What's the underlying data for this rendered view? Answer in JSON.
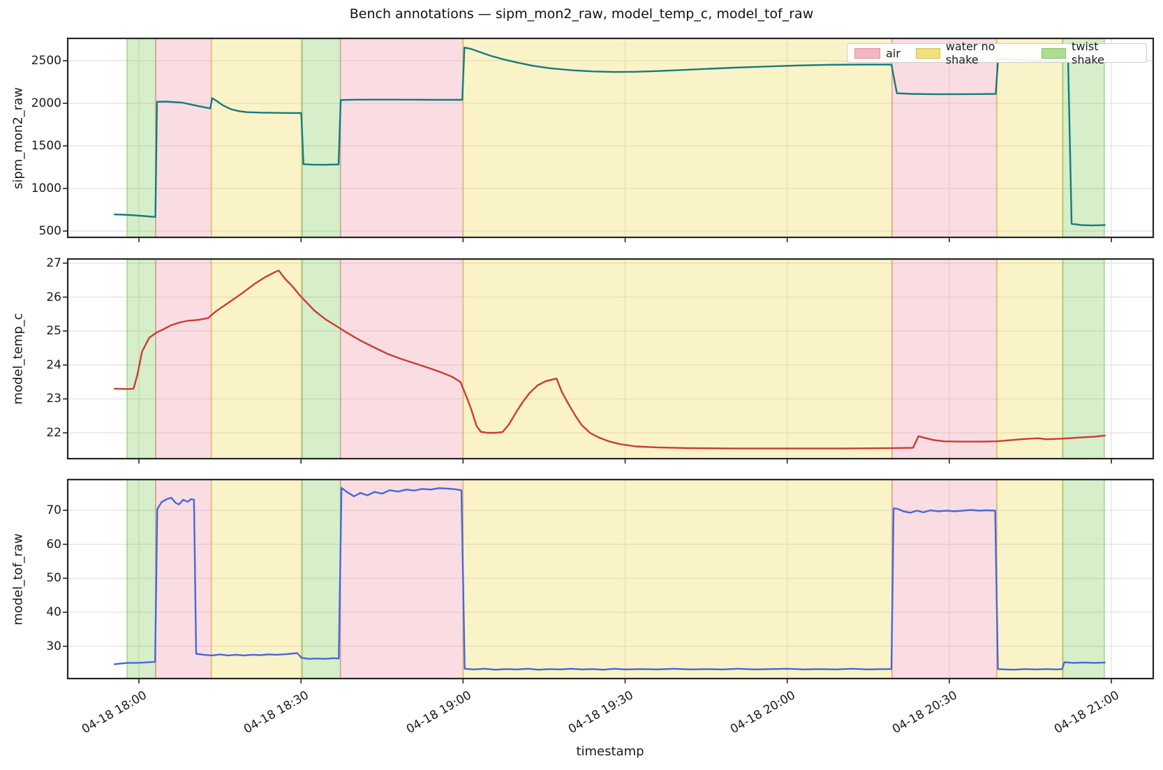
{
  "figure": {
    "title": "Bench annotations — sipm_mon2_raw, model_temp_c, model_tof_raw",
    "xlabel": "timestamp"
  },
  "legend": {
    "items": [
      {
        "label": "air",
        "fill": "#f4b7c1",
        "edge": "#db929e"
      },
      {
        "label": "water no shake",
        "fill": "#f1e07c",
        "edge": "#cfc052"
      },
      {
        "label": "twist shake",
        "fill": "#aedd92",
        "edge": "#84c166"
      }
    ]
  },
  "colors": {
    "spine": "#262626",
    "grid": "#dadada",
    "band_air": "rgba(235,142,158,0.30)",
    "band_air_edge": "rgba(230,120,135,0.55)",
    "band_water": "rgba(238,215,72,0.30)",
    "band_water_edge": "rgba(215,185,60,0.6)",
    "band_twist": "rgba(108,195,62,0.28)",
    "band_twist_edge": "rgba(110,185,70,0.55)",
    "series_sipm": "#137c7e",
    "series_temp": "#cd3a35",
    "series_tof": "#4967d8"
  },
  "chart_data": {
    "type": "line",
    "x_unit": "minutes since 04-18 18:00",
    "xlim": [
      -13.18,
      187.75
    ],
    "xticks": [
      {
        "m": 0,
        "label": "04-18 18:00"
      },
      {
        "m": 30,
        "label": "04-18 18:30"
      },
      {
        "m": 60,
        "label": "04-18 19:00"
      },
      {
        "m": 90,
        "label": "04-18 19:30"
      },
      {
        "m": 120,
        "label": "04-18 20:00"
      },
      {
        "m": 150,
        "label": "04-18 20:30"
      },
      {
        "m": 180,
        "label": "04-18 21:00"
      }
    ],
    "bands": [
      {
        "kind": "twist shake",
        "start": -2.2,
        "end": 3.1
      },
      {
        "kind": "air",
        "start": 3.1,
        "end": 13.4
      },
      {
        "kind": "water no shake",
        "start": 13.4,
        "end": 30.2
      },
      {
        "kind": "twist shake",
        "start": 30.2,
        "end": 37.3
      },
      {
        "kind": "air",
        "start": 37.3,
        "end": 60.0
      },
      {
        "kind": "water no shake",
        "start": 60.0,
        "end": 139.4
      },
      {
        "kind": "air",
        "start": 139.4,
        "end": 158.8
      },
      {
        "kind": "water no shake",
        "start": 158.8,
        "end": 171.0
      },
      {
        "kind": "twist shake",
        "start": 171.0,
        "end": 178.7
      }
    ],
    "subplots": [
      {
        "ylabel": "sipm_mon2_raw",
        "series_name": "sipm_mon2_raw",
        "color_key": "series_sipm",
        "ylim": [
          426,
          2762
        ],
        "yticks": [
          {
            "v": 500,
            "label": "500"
          },
          {
            "v": 1000,
            "label": "1000"
          },
          {
            "v": 1500,
            "label": "1500"
          },
          {
            "v": 2000,
            "label": "2000"
          },
          {
            "v": 2500,
            "label": "2500"
          }
        ],
        "points": [
          [
            -4.5,
            695
          ],
          [
            -3,
            692
          ],
          [
            -1,
            686
          ],
          [
            1,
            676
          ],
          [
            2.5,
            668
          ],
          [
            3.05,
            666
          ],
          [
            3.35,
            2018
          ],
          [
            5,
            2020
          ],
          [
            8,
            2008
          ],
          [
            11,
            1968
          ],
          [
            13.2,
            1940
          ],
          [
            13.55,
            2060
          ],
          [
            14.3,
            2032
          ],
          [
            15.5,
            1978
          ],
          [
            17,
            1932
          ],
          [
            18.5,
            1908
          ],
          [
            20,
            1896
          ],
          [
            23,
            1890
          ],
          [
            27,
            1887
          ],
          [
            30.05,
            1885
          ],
          [
            30.45,
            1285
          ],
          [
            32,
            1280
          ],
          [
            34,
            1278
          ],
          [
            36.95,
            1282
          ],
          [
            37.35,
            2038
          ],
          [
            40,
            2042
          ],
          [
            45,
            2043
          ],
          [
            50,
            2042
          ],
          [
            55,
            2041
          ],
          [
            59.85,
            2041
          ],
          [
            60.25,
            2655
          ],
          [
            61.5,
            2638
          ],
          [
            63,
            2605
          ],
          [
            65,
            2560
          ],
          [
            67.5,
            2515
          ],
          [
            70,
            2478
          ],
          [
            73,
            2440
          ],
          [
            76,
            2412
          ],
          [
            80,
            2388
          ],
          [
            84,
            2374
          ],
          [
            88,
            2368
          ],
          [
            92,
            2370
          ],
          [
            96,
            2378
          ],
          [
            100,
            2390
          ],
          [
            105,
            2404
          ],
          [
            110,
            2418
          ],
          [
            116,
            2432
          ],
          [
            122,
            2444
          ],
          [
            128,
            2452
          ],
          [
            134,
            2455
          ],
          [
            139.3,
            2455
          ],
          [
            140.3,
            2118
          ],
          [
            143,
            2110
          ],
          [
            147,
            2107
          ],
          [
            151,
            2107
          ],
          [
            155,
            2108
          ],
          [
            158.6,
            2110
          ],
          [
            159.05,
            2528
          ],
          [
            161,
            2518
          ],
          [
            164,
            2506
          ],
          [
            167,
            2497
          ],
          [
            170.9,
            2490
          ],
          [
            172.0,
            2489
          ],
          [
            172.65,
            585
          ],
          [
            174.5,
            570
          ],
          [
            176.5,
            566
          ],
          [
            178.8,
            570
          ]
        ]
      },
      {
        "ylabel": "model_temp_c",
        "series_name": "model_temp_c",
        "color_key": "series_temp",
        "ylim": [
          21.239,
          27.123
        ],
        "yticks": [
          {
            "v": 22,
            "label": "22"
          },
          {
            "v": 23,
            "label": "23"
          },
          {
            "v": 24,
            "label": "24"
          },
          {
            "v": 25,
            "label": "25"
          },
          {
            "v": 26,
            "label": "26"
          },
          {
            "v": 27,
            "label": "27"
          }
        ],
        "points": [
          [
            -4.5,
            23.3
          ],
          [
            -2,
            23.29
          ],
          [
            -1.0,
            23.3
          ],
          [
            -0.3,
            23.7
          ],
          [
            0.6,
            24.4
          ],
          [
            1.9,
            24.8
          ],
          [
            3.2,
            24.95
          ],
          [
            4.5,
            25.05
          ],
          [
            5.8,
            25.16
          ],
          [
            7.5,
            25.25
          ],
          [
            9,
            25.3
          ],
          [
            11,
            25.33
          ],
          [
            12.8,
            25.38
          ],
          [
            14,
            25.55
          ],
          [
            15.5,
            25.72
          ],
          [
            17,
            25.88
          ],
          [
            19,
            26.1
          ],
          [
            21.5,
            26.4
          ],
          [
            23.5,
            26.6
          ],
          [
            25.5,
            26.76
          ],
          [
            25.9,
            26.78
          ],
          [
            27,
            26.55
          ],
          [
            28.5,
            26.3
          ],
          [
            29.8,
            26.05
          ],
          [
            31,
            25.85
          ],
          [
            32.5,
            25.6
          ],
          [
            34.5,
            25.35
          ],
          [
            36.5,
            25.15
          ],
          [
            38.5,
            24.95
          ],
          [
            41,
            24.72
          ],
          [
            43.5,
            24.52
          ],
          [
            46,
            24.33
          ],
          [
            48.5,
            24.18
          ],
          [
            51,
            24.05
          ],
          [
            53.5,
            23.92
          ],
          [
            56,
            23.78
          ],
          [
            58,
            23.65
          ],
          [
            59.5,
            23.5
          ],
          [
            60.8,
            23.0
          ],
          [
            61.5,
            22.7
          ],
          [
            62.5,
            22.2
          ],
          [
            63.3,
            22.03
          ],
          [
            64.5,
            22.0
          ],
          [
            66,
            22.0
          ],
          [
            67.3,
            22.02
          ],
          [
            68.5,
            22.25
          ],
          [
            69.8,
            22.6
          ],
          [
            71,
            22.9
          ],
          [
            72.3,
            23.17
          ],
          [
            73.8,
            23.4
          ],
          [
            75.3,
            23.52
          ],
          [
            76.8,
            23.58
          ],
          [
            77.3,
            23.6
          ],
          [
            78.3,
            23.2
          ],
          [
            79.5,
            22.85
          ],
          [
            80.8,
            22.5
          ],
          [
            82,
            22.22
          ],
          [
            83.5,
            22.0
          ],
          [
            85,
            21.87
          ],
          [
            87,
            21.75
          ],
          [
            89,
            21.67
          ],
          [
            92,
            21.6
          ],
          [
            96,
            21.57
          ],
          [
            102,
            21.55
          ],
          [
            110,
            21.54
          ],
          [
            120,
            21.54
          ],
          [
            130,
            21.54
          ],
          [
            139.2,
            21.55
          ],
          [
            143.3,
            21.56
          ],
          [
            144.3,
            21.9
          ],
          [
            145.5,
            21.85
          ],
          [
            147,
            21.79
          ],
          [
            149,
            21.75
          ],
          [
            152,
            21.74
          ],
          [
            156,
            21.74
          ],
          [
            158.8,
            21.75
          ],
          [
            161,
            21.78
          ],
          [
            164,
            21.82
          ],
          [
            166.5,
            21.84
          ],
          [
            168,
            21.81
          ],
          [
            171,
            21.83
          ],
          [
            174,
            21.86
          ],
          [
            177,
            21.89
          ],
          [
            178.8,
            21.92
          ]
        ]
      },
      {
        "ylabel": "model_tof_raw",
        "series_name": "model_tof_raw",
        "color_key": "series_tof",
        "ylim": [
          20.5,
          79.03
        ],
        "yticks": [
          {
            "v": 30,
            "label": "30"
          },
          {
            "v": 40,
            "label": "40"
          },
          {
            "v": 50,
            "label": "50"
          },
          {
            "v": 60,
            "label": "60"
          },
          {
            "v": 70,
            "label": "70"
          }
        ],
        "points": [
          [
            -4.5,
            24.7
          ],
          [
            -3.5,
            24.9
          ],
          [
            -2,
            25.1
          ],
          [
            0,
            25.15
          ],
          [
            2,
            25.3
          ],
          [
            3.0,
            25.4
          ],
          [
            3.4,
            70.3
          ],
          [
            4.2,
            72.4
          ],
          [
            5.2,
            73.3
          ],
          [
            6.0,
            73.7
          ],
          [
            6.8,
            72.2
          ],
          [
            7.4,
            71.7
          ],
          [
            8.2,
            73.1
          ],
          [
            9.0,
            72.5
          ],
          [
            9.7,
            73.3
          ],
          [
            10.2,
            73.1
          ],
          [
            10.6,
            27.8
          ],
          [
            12,
            27.5
          ],
          [
            13.5,
            27.3
          ],
          [
            15,
            27.6
          ],
          [
            16.5,
            27.3
          ],
          [
            18,
            27.5
          ],
          [
            19.5,
            27.3
          ],
          [
            21,
            27.5
          ],
          [
            22.5,
            27.4
          ],
          [
            24,
            27.6
          ],
          [
            25.5,
            27.5
          ],
          [
            27.5,
            27.7
          ],
          [
            29.3,
            28.0
          ],
          [
            30.1,
            26.6
          ],
          [
            31.5,
            26.3
          ],
          [
            33,
            26.4
          ],
          [
            34.5,
            26.3
          ],
          [
            36,
            26.5
          ],
          [
            37.0,
            26.4
          ],
          [
            37.5,
            76.6
          ],
          [
            38.5,
            75.4
          ],
          [
            39.8,
            74.1
          ],
          [
            41,
            75.1
          ],
          [
            42.3,
            74.4
          ],
          [
            43.6,
            75.4
          ],
          [
            45,
            74.9
          ],
          [
            46.4,
            75.9
          ],
          [
            48,
            75.5
          ],
          [
            49.5,
            76.1
          ],
          [
            51,
            75.8
          ],
          [
            52.5,
            76.3
          ],
          [
            54,
            76.1
          ],
          [
            55.5,
            76.5
          ],
          [
            57,
            76.4
          ],
          [
            58.5,
            76.2
          ],
          [
            59.7,
            75.9
          ],
          [
            60.3,
            23.4
          ],
          [
            62,
            23.2
          ],
          [
            64,
            23.4
          ],
          [
            66,
            23.1
          ],
          [
            68,
            23.3
          ],
          [
            70,
            23.2
          ],
          [
            72,
            23.4
          ],
          [
            74,
            23.1
          ],
          [
            76,
            23.3
          ],
          [
            78,
            23.2
          ],
          [
            80,
            23.4
          ],
          [
            82,
            23.2
          ],
          [
            84,
            23.3
          ],
          [
            86,
            23.1
          ],
          [
            88,
            23.4
          ],
          [
            90,
            23.2
          ],
          [
            93,
            23.3
          ],
          [
            96,
            23.2
          ],
          [
            99,
            23.4
          ],
          [
            102,
            23.2
          ],
          [
            105,
            23.3
          ],
          [
            108,
            23.2
          ],
          [
            111,
            23.4
          ],
          [
            114,
            23.2
          ],
          [
            117,
            23.3
          ],
          [
            120,
            23.4
          ],
          [
            123,
            23.2
          ],
          [
            126,
            23.3
          ],
          [
            129,
            23.2
          ],
          [
            132,
            23.4
          ],
          [
            135,
            23.2
          ],
          [
            137.5,
            23.3
          ],
          [
            139.3,
            23.3
          ],
          [
            139.7,
            70.6
          ],
          [
            140.5,
            70.4
          ],
          [
            141.5,
            69.7
          ],
          [
            142.8,
            69.3
          ],
          [
            144,
            69.9
          ],
          [
            145.2,
            69.4
          ],
          [
            146.5,
            70.0
          ],
          [
            148,
            69.7
          ],
          [
            149.5,
            69.9
          ],
          [
            151,
            69.7
          ],
          [
            152.5,
            69.9
          ],
          [
            154,
            70.1
          ],
          [
            155.5,
            69.9
          ],
          [
            157,
            70.0
          ],
          [
            158.5,
            69.9
          ],
          [
            159.0,
            23.3
          ],
          [
            160.5,
            23.2
          ],
          [
            162,
            23.1
          ],
          [
            164,
            23.3
          ],
          [
            166,
            23.2
          ],
          [
            168,
            23.3
          ],
          [
            170,
            23.2
          ],
          [
            170.9,
            23.3
          ],
          [
            171.3,
            25.3
          ],
          [
            173,
            25.1
          ],
          [
            175,
            25.2
          ],
          [
            177,
            25.1
          ],
          [
            178.8,
            25.2
          ]
        ]
      }
    ]
  }
}
